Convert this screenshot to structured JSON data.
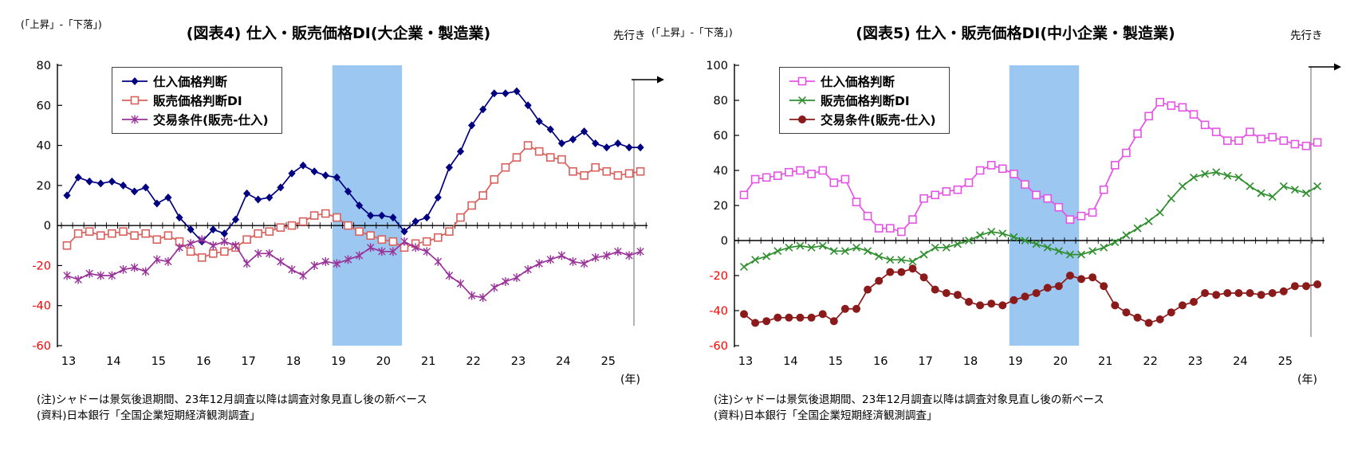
{
  "chart_data": [
    {
      "type": "line",
      "title": "(図表4) 仕入・販売価格DI(大企業・製造業)",
      "unit_label": "(「上昇」-「下落」)",
      "forecast_label": "先行き",
      "year_axis_label": "(年)",
      "notes": [
        "(注)シャドーは景気後退期間、23年12月調査以降は調査対象見直し後の新ベース",
        "(資料)日本銀行「全国企業短期経済観測調査」"
      ],
      "x_years": [
        13,
        14,
        15,
        16,
        17,
        18,
        19,
        20,
        21,
        22,
        23,
        24,
        25
      ],
      "x_start_year": 2013,
      "points_per_year": 4,
      "ylim": [
        -60,
        80
      ],
      "y_tick_step": 20,
      "axis_color": "#000000",
      "negative_tick_color": "#FF0000",
      "recession_band": {
        "from": 2018.9,
        "to": 2020.45,
        "color": "#9CC7F0"
      },
      "forecast_line_color": "#7F7F7F",
      "legend_position": "upper-left",
      "grid": false,
      "series": [
        {
          "name": "仕入価格判断",
          "color": "#000080",
          "marker": "diamond",
          "values": [
            15,
            24,
            22,
            21,
            22,
            20,
            17,
            19,
            11,
            14,
            4,
            -2,
            -8,
            -2,
            -4,
            3,
            16,
            13,
            14,
            19,
            26,
            30,
            27,
            25,
            24,
            17,
            10,
            5,
            5,
            4,
            -3,
            2,
            4,
            14,
            29,
            37,
            50,
            58,
            66,
            66,
            67,
            60,
            52,
            48,
            41,
            43,
            47,
            41,
            39,
            41,
            39
          ],
          "forecast": 39
        },
        {
          "name": "販売価格判断DI",
          "color": "#D9605C",
          "marker": "square",
          "values": [
            -10,
            -4,
            -3,
            -5,
            -4,
            -3,
            -5,
            -4,
            -7,
            -5,
            -8,
            -13,
            -16,
            -14,
            -13,
            -11,
            -7,
            -4,
            -3,
            -1,
            0,
            2,
            5,
            6,
            4,
            0,
            -3,
            -5,
            -7,
            -8,
            -11,
            -9,
            -8,
            -6,
            -3,
            4,
            10,
            15,
            23,
            29,
            34,
            40,
            37,
            34,
            33,
            27,
            25,
            29,
            27,
            25,
            26
          ],
          "forecast": 27
        },
        {
          "name": "交易条件(販売-仕入)",
          "color": "#993399",
          "marker": "asterisk",
          "values": [
            -25,
            -27,
            -24,
            -25,
            -25,
            -22,
            -21,
            -23,
            -17,
            -18,
            -11,
            -9,
            -7,
            -10,
            -8,
            -10,
            -19,
            -14,
            -14,
            -18,
            -22,
            -25,
            -20,
            -18,
            -19,
            -17,
            -15,
            -11,
            -13,
            -13,
            -8,
            -11,
            -13,
            -18,
            -25,
            -29,
            -35,
            -36,
            -31,
            -28,
            -26,
            -22,
            -19,
            -17,
            -15,
            -18,
            -19,
            -16,
            -15,
            -13,
            -15
          ],
          "forecast": -13
        }
      ]
    },
    {
      "type": "line",
      "title": "(図表5) 仕入・販売価格DI(中小企業・製造業)",
      "unit_label": "(「上昇」-「下落」)",
      "forecast_label": "先行き",
      "year_axis_label": "(年)",
      "notes": [
        "(注)シャドーは景気後退期間、23年12月調査以降は調査対象見直し後の新ベース",
        "(資料)日本銀行「全国企業短期経済観測調査」"
      ],
      "x_years": [
        13,
        14,
        15,
        16,
        17,
        18,
        19,
        20,
        21,
        22,
        23,
        24,
        25
      ],
      "x_start_year": 2013,
      "points_per_year": 4,
      "ylim": [
        -60,
        100
      ],
      "y_tick_step": 20,
      "axis_color": "#000000",
      "negative_tick_color": "#FF0000",
      "recession_band": {
        "from": 2018.9,
        "to": 2020.45,
        "color": "#9CC7F0"
      },
      "forecast_line_color": "#7F7F7F",
      "legend_position": "upper-left",
      "grid": false,
      "series": [
        {
          "name": "仕入価格判断",
          "color": "#E454E4",
          "marker": "square",
          "values": [
            26,
            35,
            36,
            37,
            39,
            40,
            38,
            40,
            33,
            35,
            22,
            14,
            7,
            7,
            5,
            12,
            24,
            26,
            28,
            29,
            33,
            40,
            43,
            41,
            38,
            32,
            26,
            24,
            19,
            12,
            14,
            16,
            29,
            43,
            50,
            61,
            71,
            79,
            77,
            76,
            72,
            66,
            62,
            57,
            57,
            62,
            58,
            59,
            57,
            55,
            54
          ],
          "forecast": 56
        },
        {
          "name": "販売価格判断DI",
          "color": "#2F8F2F",
          "marker": "x",
          "values": [
            -15,
            -11,
            -9,
            -6,
            -4,
            -3,
            -4,
            -3,
            -6,
            -6,
            -4,
            -6,
            -9,
            -11,
            -11,
            -12,
            -8,
            -4,
            -4,
            -2,
            0,
            3,
            5,
            4,
            2,
            0,
            -2,
            -4,
            -6,
            -8,
            -8,
            -6,
            -4,
            -1,
            3,
            7,
            11,
            16,
            24,
            31,
            36,
            38,
            39,
            37,
            36,
            31,
            27,
            25,
            31,
            29,
            27
          ],
          "forecast": 31
        },
        {
          "name": "交易条件(販売-仕入)",
          "color": "#8B1A1A",
          "marker": "circle",
          "values": [
            -42,
            -47,
            -46,
            -44,
            -44,
            -44,
            -44,
            -42,
            -46,
            -39,
            -39,
            -28,
            -23,
            -18,
            -18,
            -16,
            -21,
            -28,
            -30,
            -31,
            -35,
            -37,
            -36,
            -37,
            -34,
            -32,
            -30,
            -27,
            -26,
            -20,
            -22,
            -21,
            -26,
            -37,
            -41,
            -44,
            -47,
            -45,
            -41,
            -37,
            -35,
            -30,
            -31,
            -30,
            -30,
            -30,
            -31,
            -30,
            -29,
            -26,
            -26
          ],
          "forecast": -25
        }
      ]
    }
  ]
}
